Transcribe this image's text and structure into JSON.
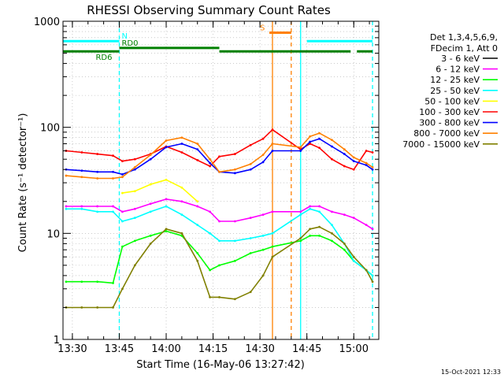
{
  "chart_data": {
    "type": "line",
    "title": "RHESSI Observing Summary Count Rates",
    "xlabel": "Start Time (16-May-06 13:27:42)",
    "ylabel": "Count Rate (s⁻¹ detector⁻¹)",
    "yscale": "log",
    "ylim": [
      1,
      1000
    ],
    "xlim": [
      "13:27",
      "15:08"
    ],
    "x_tick_labels": [
      "13:30",
      "13:45",
      "14:00",
      "14:15",
      "14:30",
      "14:45",
      "15:00"
    ],
    "y_tick_labels": [
      "1",
      "10",
      "100",
      "1000"
    ],
    "grid": true,
    "legend_position": "right",
    "legend_header": [
      "Det 1,3,4,5,6,9,",
      "FDecim 1, Att 0"
    ],
    "timestamp": "15-Oct-2021 12:33",
    "x": [
      "13:28",
      "13:33",
      "13:38",
      "13:43",
      "13:46",
      "13:50",
      "13:55",
      "14:00",
      "14:05",
      "14:10",
      "14:14",
      "14:17",
      "14:22",
      "14:27",
      "14:31",
      "14:34",
      "14:43",
      "14:46",
      "14:49",
      "14:53",
      "14:57",
      "15:00",
      "15:04",
      "15:06"
    ],
    "series": [
      {
        "name": "3 - 6 keV",
        "color": "#000000",
        "values": [
          null,
          null,
          null,
          null,
          null,
          null,
          null,
          null,
          null,
          null,
          null,
          null,
          null,
          null,
          null,
          null,
          null,
          null,
          null,
          null,
          null,
          null,
          null,
          null
        ]
      },
      {
        "name": "6 - 12 keV",
        "color": "#ff00ff",
        "values": [
          18,
          18,
          18,
          18,
          16,
          17,
          19,
          21,
          20,
          18,
          16,
          13,
          13,
          14,
          15,
          16,
          16,
          18,
          18,
          16,
          15,
          14,
          12,
          11
        ]
      },
      {
        "name": "12 - 25 keV",
        "color": "#00ff00",
        "values": [
          3.5,
          3.5,
          3.5,
          3.4,
          7.5,
          8.5,
          9.5,
          10.5,
          9.5,
          6.5,
          4.5,
          5.0,
          5.5,
          6.5,
          7.0,
          7.5,
          8.5,
          9.5,
          9.5,
          8.5,
          7.0,
          5.5,
          4.5,
          4.0
        ]
      },
      {
        "name": "25 - 50 keV",
        "color": "#00ffff",
        "values": [
          17,
          17,
          16,
          16,
          13,
          14,
          16,
          18,
          15,
          12,
          10,
          8.5,
          8.5,
          9.0,
          9.5,
          10,
          15,
          17,
          16,
          12,
          8.0,
          5.5,
          4.5,
          4.0
        ]
      },
      {
        "name": "50 - 100 keV",
        "color": "#ffff00",
        "values": [
          null,
          null,
          null,
          null,
          24,
          25,
          29,
          32,
          27,
          20,
          null,
          null,
          null,
          null,
          null,
          null,
          null,
          null,
          null,
          null,
          null,
          null,
          null,
          null
        ]
      },
      {
        "name": "100 - 300 keV",
        "color": "#ff0000",
        "values": [
          60,
          58,
          56,
          54,
          48,
          50,
          56,
          66,
          58,
          49,
          43,
          53,
          56,
          68,
          78,
          95,
          62,
          70,
          64,
          50,
          43,
          40,
          60,
          58
        ]
      },
      {
        "name": "300 - 800 keV",
        "color": "#0000ff",
        "values": [
          40,
          39,
          38,
          38,
          36,
          40,
          50,
          65,
          70,
          62,
          46,
          38,
          37,
          40,
          47,
          60,
          60,
          73,
          78,
          66,
          56,
          48,
          44,
          40
        ]
      },
      {
        "name": "800 - 7000 keV",
        "color": "#ff8000",
        "values": [
          35,
          34,
          33,
          33,
          34,
          42,
          55,
          75,
          80,
          70,
          50,
          38,
          40,
          45,
          55,
          70,
          65,
          82,
          88,
          76,
          62,
          52,
          46,
          42
        ]
      },
      {
        "name": "7000 - 15000 keV",
        "color": "#808000",
        "values": [
          2.0,
          2.0,
          2.0,
          2.0,
          3.0,
          5.0,
          8.0,
          11,
          10,
          5.5,
          2.5,
          2.5,
          2.4,
          2.8,
          4.0,
          6.0,
          9.0,
          11,
          11.5,
          10,
          8.0,
          6.0,
          4.5,
          3.5
        ]
      }
    ],
    "segment_bars": [
      {
        "label": "N",
        "color": "#00ffff",
        "y": 650,
        "spans": [
          [
            "13:27",
            "13:45"
          ],
          [
            "14:45",
            "15:06"
          ]
        ]
      },
      {
        "label": "RD0",
        "color": "#008000",
        "y": 560,
        "spans": [
          [
            "13:45",
            "14:17"
          ]
        ]
      },
      {
        "label": "RD6",
        "color": "#008000",
        "y": 520,
        "spans": [
          [
            "13:27",
            "13:45"
          ],
          [
            "14:17",
            "14:40"
          ],
          [
            "14:40",
            "14:59"
          ],
          [
            "15:01",
            "15:06"
          ]
        ]
      },
      {
        "label": "S",
        "color": "#ff8000",
        "y": 780,
        "spans": [
          [
            "14:33",
            "14:40"
          ]
        ]
      }
    ],
    "vertical_markers": [
      {
        "time": "13:45",
        "color": "#00ffff",
        "style": "dashed"
      },
      {
        "time": "14:34",
        "color": "#ff8000",
        "style": "solid"
      },
      {
        "time": "14:40",
        "color": "#ff8000",
        "style": "dashed"
      },
      {
        "time": "14:43",
        "color": "#00ffff",
        "style": "solid"
      },
      {
        "time": "15:06",
        "color": "#00ffff",
        "style": "dashed"
      }
    ]
  }
}
